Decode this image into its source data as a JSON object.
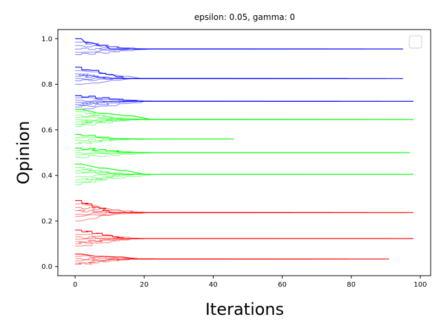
{
  "chart_data": {
    "type": "line",
    "title": "epsilon: 0.05, gamma: 0",
    "xlabel": "Iterations",
    "ylabel": "Opinion",
    "xlim": [
      -5,
      103
    ],
    "ylim": [
      -0.04,
      1.04
    ],
    "xticks": [
      "0",
      "20",
      "40",
      "60",
      "80",
      "100"
    ],
    "yticks": [
      "0.0",
      "0.2",
      "0.4",
      "0.6",
      "0.8",
      "1.0"
    ],
    "grid": false,
    "legend": {
      "placement": "top-right",
      "entries": []
    },
    "colors": {
      "blue": "#0000ff",
      "green": "#00ff00",
      "red": "#ff0000"
    },
    "clusters": [
      {
        "color": "blue",
        "final": 0.955,
        "end": 95,
        "starts": [
          1.0,
          0.985,
          0.97,
          0.955,
          0.94,
          0.93
        ]
      },
      {
        "color": "blue",
        "final": 0.825,
        "end": 95,
        "starts": [
          0.875,
          0.86,
          0.845,
          0.835,
          0.825,
          0.815,
          0.8
        ]
      },
      {
        "color": "blue",
        "final": 0.725,
        "end": 98,
        "starts": [
          0.75,
          0.74,
          0.73,
          0.72,
          0.71,
          0.7,
          0.69
        ]
      },
      {
        "color": "green",
        "final": 0.645,
        "end": 98,
        "starts": [
          0.69,
          0.68,
          0.665,
          0.655,
          0.645,
          0.635,
          0.625,
          0.615
        ]
      },
      {
        "color": "green",
        "final": 0.56,
        "end": 46,
        "starts": [
          0.58,
          0.565,
          0.555,
          0.54
        ]
      },
      {
        "color": "green",
        "final": 0.5,
        "end": 97,
        "starts": [
          0.52,
          0.51,
          0.5,
          0.49,
          0.48
        ]
      },
      {
        "color": "green",
        "final": 0.405,
        "end": 98,
        "starts": [
          0.45,
          0.435,
          0.42,
          0.41,
          0.395,
          0.38,
          0.37,
          0.36
        ]
      },
      {
        "color": "red",
        "final": 0.237,
        "end": 98,
        "starts": [
          0.29,
          0.275,
          0.26,
          0.245,
          0.23,
          0.22,
          0.2
        ]
      },
      {
        "color": "red",
        "final": 0.123,
        "end": 98,
        "starts": [
          0.16,
          0.14,
          0.13,
          0.12,
          0.11,
          0.1,
          0.09
        ]
      },
      {
        "color": "red",
        "final": 0.033,
        "end": 91,
        "starts": [
          0.055,
          0.045,
          0.035,
          0.025,
          0.015,
          0.01
        ]
      }
    ]
  }
}
